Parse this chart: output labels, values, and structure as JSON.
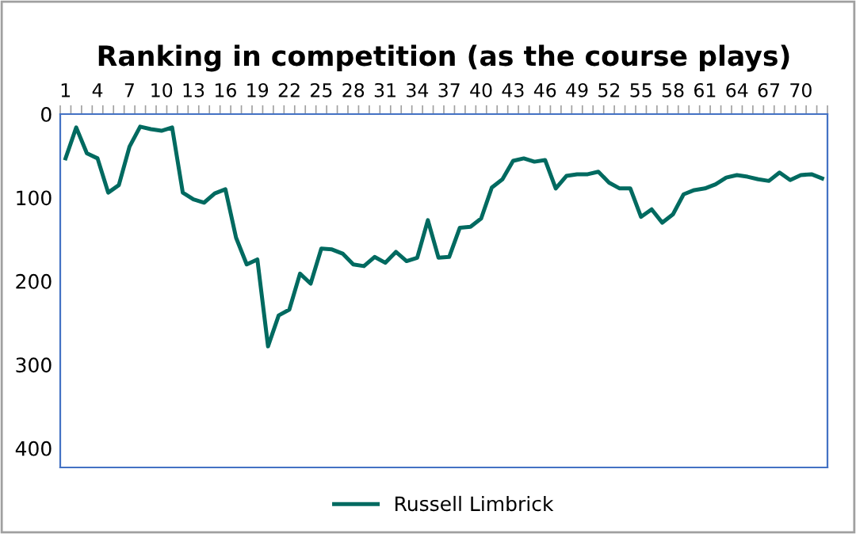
{
  "chart_data": {
    "type": "line",
    "title": "Ranking in competition (as the course plays)",
    "categories": [
      "1",
      null,
      null,
      "4",
      null,
      null,
      "7",
      null,
      null,
      "10",
      null,
      null,
      "13",
      null,
      null,
      "16",
      null,
      null,
      "19",
      null,
      null,
      "22",
      null,
      null,
      "25",
      null,
      null,
      "28",
      null,
      null,
      "31",
      null,
      null,
      "34",
      null,
      null,
      "37",
      null,
      null,
      "40",
      null,
      null,
      "43",
      null,
      null,
      "46",
      null,
      null,
      "49",
      null,
      null,
      "52",
      null,
      null,
      "55",
      null,
      null,
      "58",
      null,
      null,
      "61",
      null,
      null,
      "64",
      null,
      null,
      "67",
      null,
      null,
      "70",
      null,
      null
    ],
    "series": [
      {
        "name": "Russell Limbrick",
        "color": "#006a60",
        "values": [
          53,
          16,
          47,
          53,
          94,
          85,
          39,
          15,
          18,
          20,
          16,
          94,
          102,
          106,
          95,
          90,
          148,
          180,
          174,
          278,
          241,
          234,
          191,
          203,
          161,
          162,
          167,
          180,
          182,
          171,
          178,
          165,
          176,
          172,
          127,
          172,
          171,
          136,
          135,
          125,
          88,
          78,
          56,
          53,
          57,
          55,
          89,
          74,
          72,
          72,
          69,
          82,
          89,
          89,
          123,
          114,
          130,
          120,
          96,
          91,
          89,
          84,
          76,
          73,
          75,
          78,
          80,
          70,
          79,
          73,
          72,
          77
        ]
      }
    ],
    "ylim": [
      423,
      0
    ],
    "yticks": [
      0,
      100,
      200,
      300,
      400
    ],
    "grid": false,
    "legend": "bottom",
    "marker": "none",
    "line_style": "solid"
  }
}
